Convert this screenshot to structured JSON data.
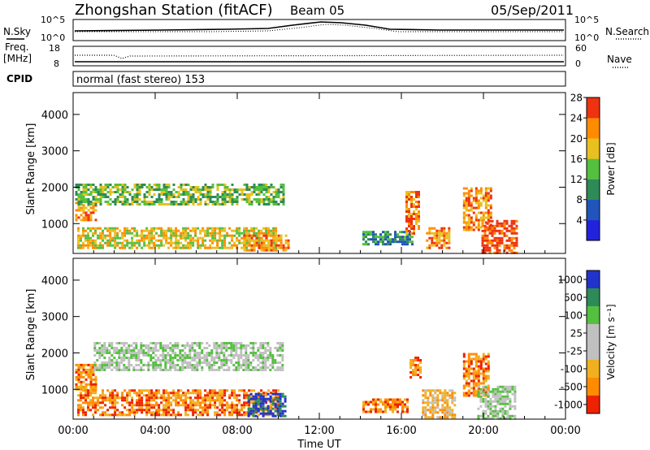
{
  "header": {
    "station": "Zhongshan Station (fitACF)",
    "beam": "Beam 05",
    "date": "05/Sep/2011"
  },
  "strip1": {
    "left_label": "N.Sky",
    "left_ticks": [
      "10^5",
      "10^0"
    ],
    "right_label": "N.Search",
    "right_ticks": [
      "10^5",
      "10^0"
    ]
  },
  "strip2": {
    "left_label_1": "Freq.",
    "left_label_2": "[MHz]",
    "left_ticks": [
      "18",
      "8"
    ],
    "right_label": "Nave",
    "right_ticks": [
      "60",
      "0"
    ]
  },
  "cpid": {
    "label": "CPID",
    "text": "normal (fast stereo) 153"
  },
  "chart_data": [
    {
      "type": "heatmap",
      "name": "power",
      "ylabel": "Slant Range [km]",
      "xlabel": "",
      "x_ticks": [
        "00:00",
        "04:00",
        "08:00",
        "12:00",
        "16:00",
        "20:00",
        "00:00"
      ],
      "x_range_hours": [
        0,
        24
      ],
      "ylim": [
        180,
        4600
      ],
      "y_ticks": [
        1000,
        2000,
        3000,
        4000
      ],
      "colorbar": {
        "label": "Power [dB]",
        "ticks": [
          "4",
          "8",
          "12",
          "16",
          "20",
          "24",
          "28"
        ],
        "colors": [
          "#2222dd",
          "#2255bb",
          "#2e8b57",
          "#55c040",
          "#e8c020",
          "#ff8c00",
          "#ee3311"
        ]
      },
      "patches": [
        {
          "t0": 0.1,
          "t1": 1.1,
          "r0": 1100,
          "r1": 1600,
          "level": 5
        },
        {
          "t0": 0.1,
          "t1": 10.2,
          "r0": 1500,
          "r1": 2100,
          "level": 3
        },
        {
          "t0": 0.2,
          "t1": 9.9,
          "r0": 300,
          "r1": 900,
          "level": 4
        },
        {
          "t0": 8.3,
          "t1": 10.5,
          "r0": 250,
          "r1": 700,
          "level": 5
        },
        {
          "t0": 14.1,
          "t1": 16.5,
          "r0": 400,
          "r1": 800,
          "level": 2
        },
        {
          "t0": 16.2,
          "t1": 16.9,
          "r0": 700,
          "r1": 1900,
          "level": 5
        },
        {
          "t0": 17.2,
          "t1": 18.3,
          "r0": 300,
          "r1": 900,
          "level": 5
        },
        {
          "t0": 19.0,
          "t1": 20.4,
          "r0": 800,
          "r1": 2000,
          "level": 5
        },
        {
          "t0": 19.9,
          "t1": 21.6,
          "r0": 200,
          "r1": 1100,
          "level": 6
        }
      ]
    },
    {
      "type": "heatmap",
      "name": "velocity",
      "ylabel": "Slant Range [km]",
      "xlabel": "Time UT",
      "x_ticks": [
        "00:00",
        "04:00",
        "08:00",
        "12:00",
        "16:00",
        "20:00",
        "00:00"
      ],
      "x_range_hours": [
        0,
        24
      ],
      "ylim": [
        180,
        4600
      ],
      "y_ticks": [
        1000,
        2000,
        3000,
        4000
      ],
      "colorbar": {
        "label": "Velocity [m s⁻¹]",
        "ticks": [
          "1000",
          "500",
          "100",
          "25",
          "-25",
          "-100",
          "-500",
          "-1000"
        ],
        "colors": [
          "#2233cc",
          "#2e8b57",
          "#55c040",
          "#c0c0c0",
          "#c0c0c0",
          "#f0b020",
          "#ff8c00",
          "#ee2200"
        ]
      },
      "patches": [
        {
          "t0": 0.1,
          "t1": 1.1,
          "r0": 1000,
          "r1": 1700,
          "level": 6
        },
        {
          "t0": 1.0,
          "t1": 10.2,
          "r0": 1500,
          "r1": 2300,
          "level": 3
        },
        {
          "t0": 0.2,
          "t1": 10.0,
          "r0": 300,
          "r1": 1000,
          "level": 6
        },
        {
          "t0": 8.5,
          "t1": 10.4,
          "r0": 250,
          "r1": 900,
          "level": 0
        },
        {
          "t0": 14.1,
          "t1": 16.3,
          "r0": 350,
          "r1": 750,
          "level": 6
        },
        {
          "t0": 16.4,
          "t1": 16.9,
          "r0": 1300,
          "r1": 1900,
          "level": 6
        },
        {
          "t0": 17.0,
          "t1": 18.6,
          "r0": 200,
          "r1": 1000,
          "level": 5
        },
        {
          "t0": 19.0,
          "t1": 20.3,
          "r0": 800,
          "r1": 2000,
          "level": 6
        },
        {
          "t0": 19.7,
          "t1": 21.5,
          "r0": 200,
          "r1": 1100,
          "level": 3
        }
      ]
    }
  ]
}
